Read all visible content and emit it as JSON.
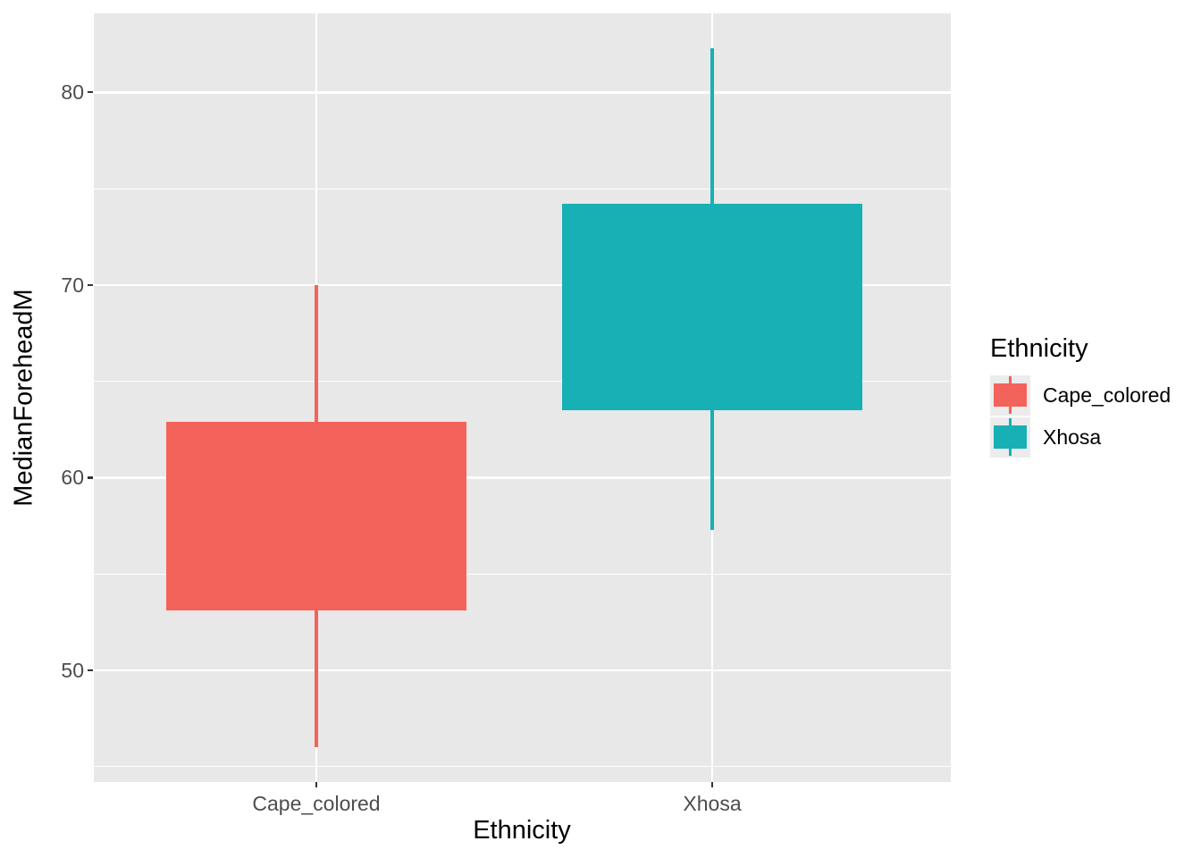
{
  "figure": {
    "x_axis_title": "Ethnicity",
    "y_axis_title": "MedianForeheadM"
  },
  "legend": {
    "title": "Ethnicity",
    "items": [
      {
        "label": "Cape_colored",
        "color": "#F4635B"
      },
      {
        "label": "Xhosa",
        "color": "#17B1B5"
      }
    ]
  },
  "chart_data": {
    "type": "boxplot",
    "title": "",
    "xlabel": "Ethnicity",
    "ylabel": "MedianForeheadM",
    "categories": [
      "Cape_colored",
      "Xhosa"
    ],
    "series": [
      {
        "name": "Cape_colored",
        "color": "#F4635B",
        "whisker_low": 46.0,
        "q1": 53.1,
        "median": null,
        "q3": 62.9,
        "whisker_high": 70.0
      },
      {
        "name": "Xhosa",
        "color": "#17B1B5",
        "whisker_low": 57.3,
        "q1": 63.5,
        "median": null,
        "q3": 74.2,
        "whisker_high": 82.3
      }
    ],
    "median_line_visible": false,
    "outliers": [],
    "ylim": [
      44.2,
      84.1
    ],
    "yticks": [
      50,
      60,
      70,
      80
    ],
    "yticks_minor": [
      45,
      55,
      65,
      75
    ],
    "grid": true,
    "legend_title": "Ethnicity",
    "legend_position": "right",
    "panel_bg": "#E8E8E8",
    "grid_color": "#FFFFFF",
    "tick_label_color": "#4D4D4D",
    "axis_title_color": "#000000"
  }
}
